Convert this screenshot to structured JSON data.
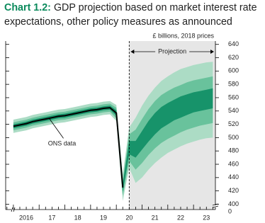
{
  "chart_data": {
    "type": "fan",
    "title_prefix": "Chart 1.2:",
    "title": "GDP projection based on market interest rate expectations, other policy measures as announced",
    "unit_label": "£ billions, 2018 prices",
    "projection_label": "Projection",
    "projection_start": 2020.5,
    "xlim": [
      2015.7,
      2023.85
    ],
    "ylim": [
      392,
      645
    ],
    "xticks": [
      {
        "value": 2016.5,
        "label": "2016"
      },
      {
        "value": 2017.5,
        "label": "17"
      },
      {
        "value": 2018.5,
        "label": "18"
      },
      {
        "value": 2019.5,
        "label": "19"
      },
      {
        "value": 2020.5,
        "label": "20"
      },
      {
        "value": 2021.5,
        "label": "21"
      },
      {
        "value": 2022.5,
        "label": "22"
      },
      {
        "value": 2023.5,
        "label": "23"
      }
    ],
    "xminor": [
      2015.75,
      2016,
      2016.25,
      2016.5,
      2016.75,
      2017,
      2017.25,
      2017.5,
      2017.75,
      2018,
      2018.25,
      2018.5,
      2018.75,
      2019,
      2019.25,
      2019.5,
      2019.75,
      2020,
      2020.25,
      2020.5,
      2020.75,
      2021,
      2021.25,
      2021.5,
      2021.75,
      2022,
      2022.25,
      2022.5,
      2022.75,
      2023,
      2023.25,
      2023.5,
      2023.75
    ],
    "yticks": [
      400,
      420,
      440,
      460,
      480,
      500,
      520,
      540,
      560,
      580,
      600,
      620,
      640
    ],
    "ybreak_label": 0,
    "x": [
      2016,
      2016.25,
      2016.5,
      2016.75,
      2017,
      2017.25,
      2017.5,
      2017.75,
      2018,
      2018.25,
      2018.5,
      2018.75,
      2019,
      2019.25,
      2019.5,
      2019.75,
      2020,
      2020.25,
      2020.5,
      2020.75,
      2021,
      2021.25,
      2021.5,
      2021.75,
      2022,
      2022.25,
      2022.5,
      2022.75,
      2023,
      2023.25,
      2023.5,
      2023.75
    ],
    "series": [
      {
        "name": "ONS data",
        "color": "#000000",
        "values": [
          517,
          519,
          521,
          524,
          526,
          528,
          530,
          532,
          533,
          535,
          537,
          539,
          541,
          542,
          544,
          545,
          537,
          425,
          null,
          null,
          null,
          null,
          null,
          null,
          null,
          null,
          null,
          null,
          null,
          null,
          null,
          null
        ]
      }
    ],
    "bands": [
      {
        "color": "#acdcc5",
        "lower": [
          507,
          509,
          511,
          514,
          516,
          518,
          520,
          522,
          523,
          525,
          527,
          529,
          531,
          532,
          534,
          535,
          525,
          405,
          455,
          432,
          440,
          452,
          462,
          470,
          477,
          482,
          487,
          491,
          494,
          497,
          499,
          500
        ],
        "upper": [
          527,
          529,
          531,
          534,
          536,
          538,
          540,
          542,
          543,
          545,
          547,
          549,
          551,
          552,
          554,
          555,
          549,
          445,
          515,
          530,
          548,
          563,
          575,
          585,
          592,
          598,
          603,
          606,
          609,
          611,
          613,
          614
        ]
      },
      {
        "color": "#69c29c",
        "lower": [
          511,
          513,
          515,
          518,
          520,
          522,
          524,
          526,
          527,
          529,
          531,
          533,
          535,
          536,
          538,
          539,
          529,
          413,
          465,
          452,
          462,
          474,
          484,
          492,
          498,
          503,
          508,
          512,
          515,
          518,
          520,
          522
        ],
        "upper": [
          523,
          525,
          527,
          530,
          532,
          534,
          536,
          538,
          539,
          541,
          543,
          545,
          547,
          548,
          550,
          551,
          545,
          437,
          505,
          512,
          528,
          543,
          555,
          564,
          570,
          575,
          579,
          583,
          586,
          588,
          590,
          592
        ]
      },
      {
        "color": "#17936a",
        "lower": [
          514,
          516,
          518,
          521,
          523,
          525,
          527,
          529,
          530,
          532,
          534,
          536,
          538,
          539,
          541,
          542,
          533,
          419,
          475,
          470,
          482,
          494,
          505,
          514,
          520,
          526,
          530,
          534,
          538,
          540,
          542,
          544
        ],
        "upper": [
          520,
          522,
          524,
          527,
          529,
          531,
          533,
          535,
          536,
          538,
          540,
          542,
          544,
          545,
          547,
          548,
          541,
          431,
          495,
          495,
          510,
          525,
          537,
          546,
          552,
          557,
          562,
          565,
          568,
          570,
          572,
          574
        ]
      }
    ]
  }
}
